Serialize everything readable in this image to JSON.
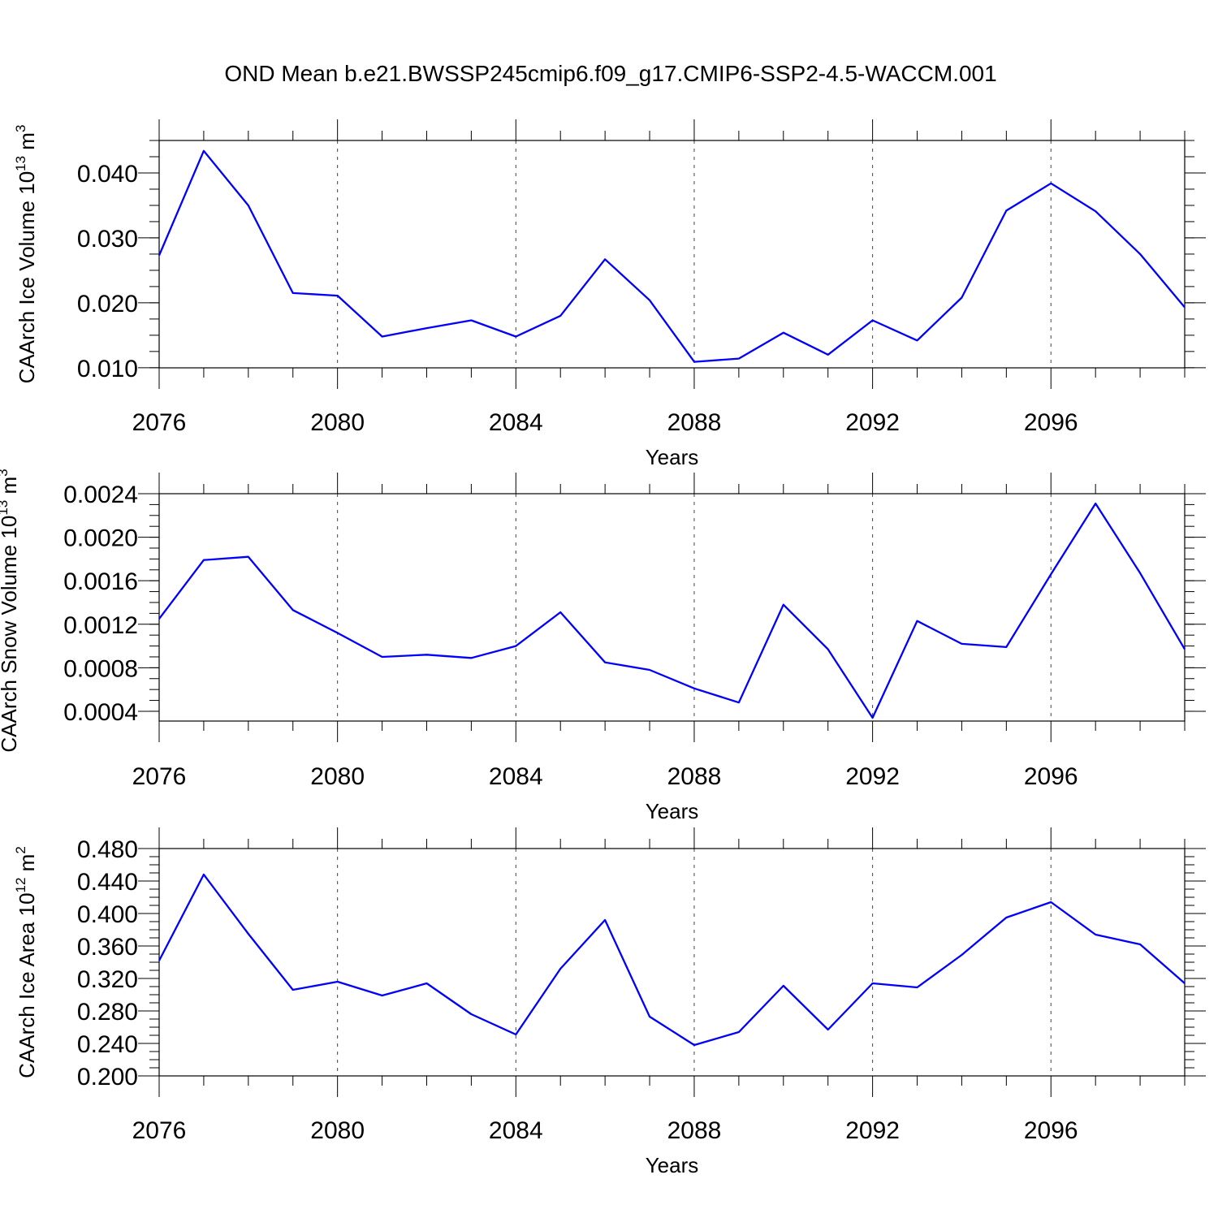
{
  "title": "OND Mean b.e21.BWSSP245cmip6.f09_g17.CMIP6-SSP2-4.5-WACCM.001",
  "chart_data": [
    {
      "type": "line",
      "title": "OND Mean b.e21.BWSSP245cmip6.f09_g17.CMIP6-SSP2-4.5-WACCM.001",
      "xlabel": "Years",
      "ylabel": {
        "text": "CAArch Ice Volume 10",
        "sup": "13",
        "unit": " m",
        "unit_sup": "3"
      },
      "xlim": [
        2076,
        2099
      ],
      "ylim": [
        0.00998,
        0.045
      ],
      "x_ticks": [
        "2076",
        "2080",
        "2084",
        "2088",
        "2092",
        "2096"
      ],
      "y_ticks": [
        "0.010",
        "0.020",
        "0.030",
        "0.040"
      ],
      "grid": "vertical dashed at major x ticks",
      "color": "#0000ff",
      "x": [
        2076,
        2077,
        2078,
        2079,
        2080,
        2081,
        2082,
        2083,
        2084,
        2085,
        2086,
        2087,
        2088,
        2089,
        2090,
        2091,
        2092,
        2093,
        2094,
        2095,
        2096,
        2097,
        2098,
        2099
      ],
      "values": [
        0.0273,
        0.0434,
        0.035,
        0.0215,
        0.0211,
        0.0148,
        0.0161,
        0.0173,
        0.0148,
        0.018,
        0.0267,
        0.0204,
        0.0109,
        0.0114,
        0.0154,
        0.012,
        0.0173,
        0.0142,
        0.0208,
        0.0342,
        0.0384,
        0.0341,
        0.0275,
        0.0193
      ]
    },
    {
      "type": "line",
      "xlabel": "Years",
      "ylabel": {
        "text": "CAArch Snow Volume 10",
        "sup": "13",
        "unit": " m",
        "unit_sup": "3"
      },
      "xlim": [
        2076,
        2099
      ],
      "ylim": [
        0.00031,
        0.0024
      ],
      "x_ticks": [
        "2076",
        "2080",
        "2084",
        "2088",
        "2092",
        "2096"
      ],
      "y_ticks": [
        "0.0004",
        "0.0008",
        "0.0012",
        "0.0016",
        "0.0020",
        "0.0024"
      ],
      "grid": "vertical dashed at major x ticks",
      "color": "#0000ff",
      "x": [
        2076,
        2077,
        2078,
        2079,
        2080,
        2081,
        2082,
        2083,
        2084,
        2085,
        2086,
        2087,
        2088,
        2089,
        2090,
        2091,
        2092,
        2093,
        2094,
        2095,
        2096,
        2097,
        2098,
        2099
      ],
      "values": [
        0.00125,
        0.00179,
        0.00182,
        0.00133,
        0.00112,
        0.0009,
        0.00092,
        0.00089,
        0.001,
        0.00131,
        0.00085,
        0.00078,
        0.00061,
        0.00048,
        0.00138,
        0.00097,
        0.00034,
        0.00123,
        0.00102,
        0.00099,
        0.00166,
        0.00231,
        0.00167,
        0.00097
      ]
    },
    {
      "type": "line",
      "xlabel": "Years",
      "ylabel": {
        "text": "CAArch Ice Area 10",
        "sup": "12",
        "unit": " m",
        "unit_sup": "2"
      },
      "xlim": [
        2076,
        2099
      ],
      "ylim": [
        0.2,
        0.48
      ],
      "x_ticks": [
        "2076",
        "2080",
        "2084",
        "2088",
        "2092",
        "2096"
      ],
      "y_ticks": [
        "0.200",
        "0.240",
        "0.280",
        "0.320",
        "0.360",
        "0.400",
        "0.440",
        "0.480"
      ],
      "grid": "vertical dashed at major x ticks",
      "color": "#0000ff",
      "x": [
        2076,
        2077,
        2078,
        2079,
        2080,
        2081,
        2082,
        2083,
        2084,
        2085,
        2086,
        2087,
        2088,
        2089,
        2090,
        2091,
        2092,
        2093,
        2094,
        2095,
        2096,
        2097,
        2098,
        2099
      ],
      "values": [
        0.342,
        0.448,
        0.375,
        0.306,
        0.316,
        0.299,
        0.314,
        0.276,
        0.251,
        0.332,
        0.392,
        0.273,
        0.238,
        0.254,
        0.311,
        0.257,
        0.314,
        0.309,
        0.349,
        0.395,
        0.414,
        0.374,
        0.362,
        0.314
      ]
    }
  ]
}
